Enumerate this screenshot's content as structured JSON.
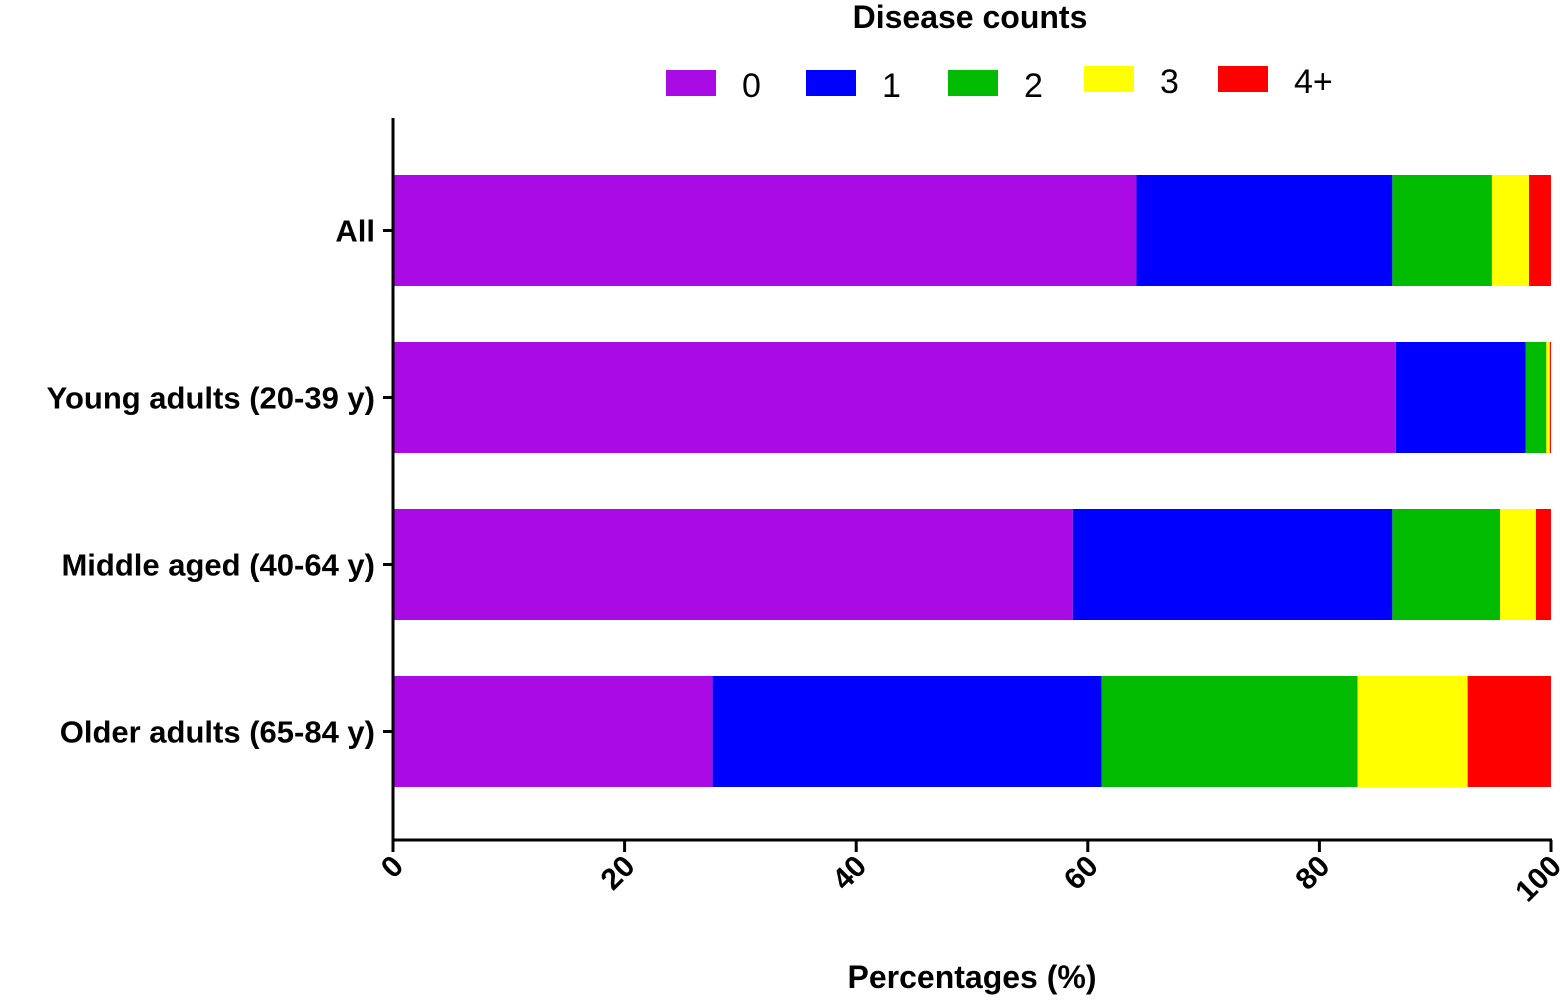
{
  "chart_data": {
    "type": "bar",
    "orientation": "horizontal",
    "stacked": true,
    "legend_title": "Disease counts",
    "legend_position": "top",
    "xlabel": "Percentages (%)",
    "ylabel": "",
    "xlim": [
      0,
      100
    ],
    "xticks": [
      "0",
      "20",
      "40",
      "60",
      "80",
      "100"
    ],
    "categories": [
      "All",
      "Young adults (20-39 y)",
      "Middle aged (40-64 y)",
      "Older adults (65-84 y)"
    ],
    "series": [
      {
        "name": "0",
        "color": "#AA0AE4",
        "values": [
          64.2,
          86.6,
          58.7,
          27.6
        ]
      },
      {
        "name": "1",
        "color": "#0000FF",
        "values": [
          22.1,
          11.2,
          27.6,
          33.6
        ]
      },
      {
        "name": "2",
        "color": "#00BB00",
        "values": [
          8.6,
          1.8,
          9.3,
          22.1
        ]
      },
      {
        "name": "3",
        "color": "#FFFF00",
        "values": [
          3.2,
          0.3,
          3.1,
          9.5
        ]
      },
      {
        "name": "4+",
        "color": "#FF0000",
        "values": [
          1.9,
          0.1,
          1.3,
          7.2
        ]
      }
    ],
    "grid": false
  }
}
